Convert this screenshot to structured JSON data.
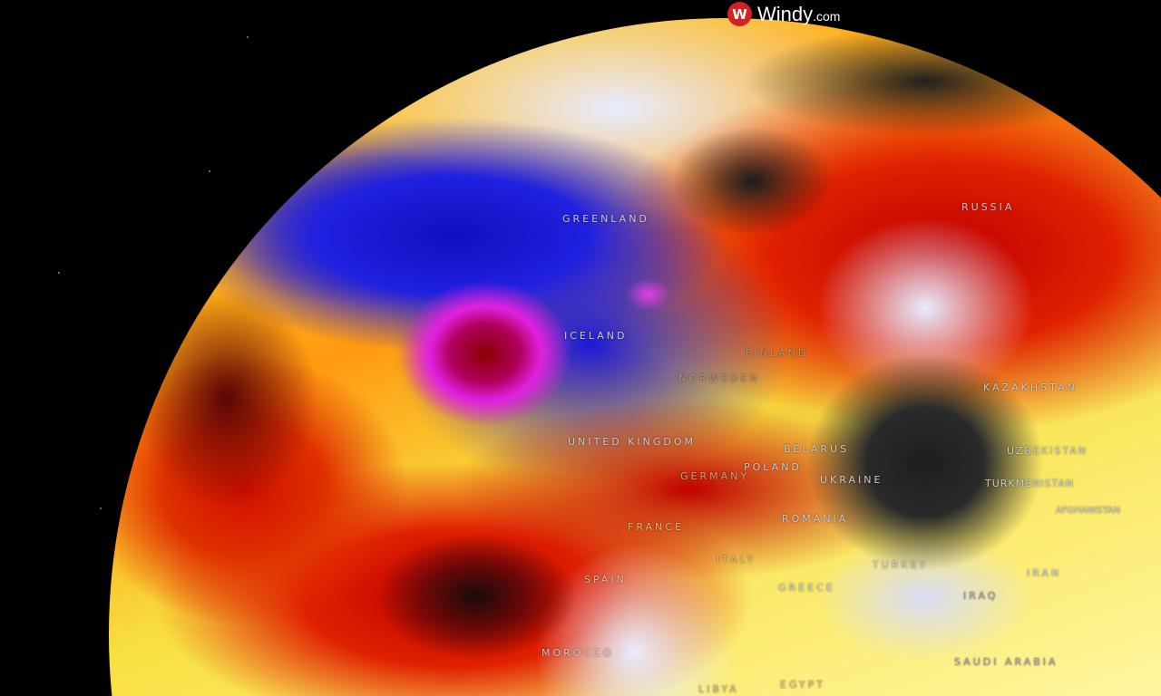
{
  "brand": {
    "mark": "W",
    "name": "Windy",
    "suffix": ".com",
    "color": "#d42222"
  },
  "labels": [
    {
      "id": "greenland",
      "text": "GREENLAND"
    },
    {
      "id": "russia",
      "text": "RUSSIA"
    },
    {
      "id": "iceland",
      "text": "ICELAND"
    },
    {
      "id": "finland",
      "text": "FINLAND"
    },
    {
      "id": "norway-sweden",
      "text": "NORWEDEN"
    },
    {
      "id": "kazakhstan",
      "text": "KAZAKHSTAN"
    },
    {
      "id": "united-kingdom",
      "text": "UNITED KINGDOM"
    },
    {
      "id": "belarus",
      "text": "BELARUS"
    },
    {
      "id": "uzbekistan",
      "text": "UZBEKISTAN"
    },
    {
      "id": "poland",
      "text": "POLAND"
    },
    {
      "id": "germany",
      "text": "GERMANY"
    },
    {
      "id": "ukraine",
      "text": "UKRAINE"
    },
    {
      "id": "turkmenistan",
      "text": "TURKMENISTAN"
    },
    {
      "id": "afghanistan",
      "text": "AFGHANISTAN"
    },
    {
      "id": "romania",
      "text": "ROMANIA"
    },
    {
      "id": "france",
      "text": "FRANCE"
    },
    {
      "id": "italy",
      "text": "ITALY"
    },
    {
      "id": "spain",
      "text": "SPAIN"
    },
    {
      "id": "turkey",
      "text": "TURKEY"
    },
    {
      "id": "iran",
      "text": "IRAN"
    },
    {
      "id": "greece",
      "text": "GREECE"
    },
    {
      "id": "iraq",
      "text": "IRAQ"
    },
    {
      "id": "morocco",
      "text": "MOROCCO"
    },
    {
      "id": "saudi-arabia",
      "text": "SAUDI ARABIA"
    },
    {
      "id": "egypt",
      "text": "EGYPT"
    },
    {
      "id": "libya",
      "text": "LIBYA"
    }
  ]
}
